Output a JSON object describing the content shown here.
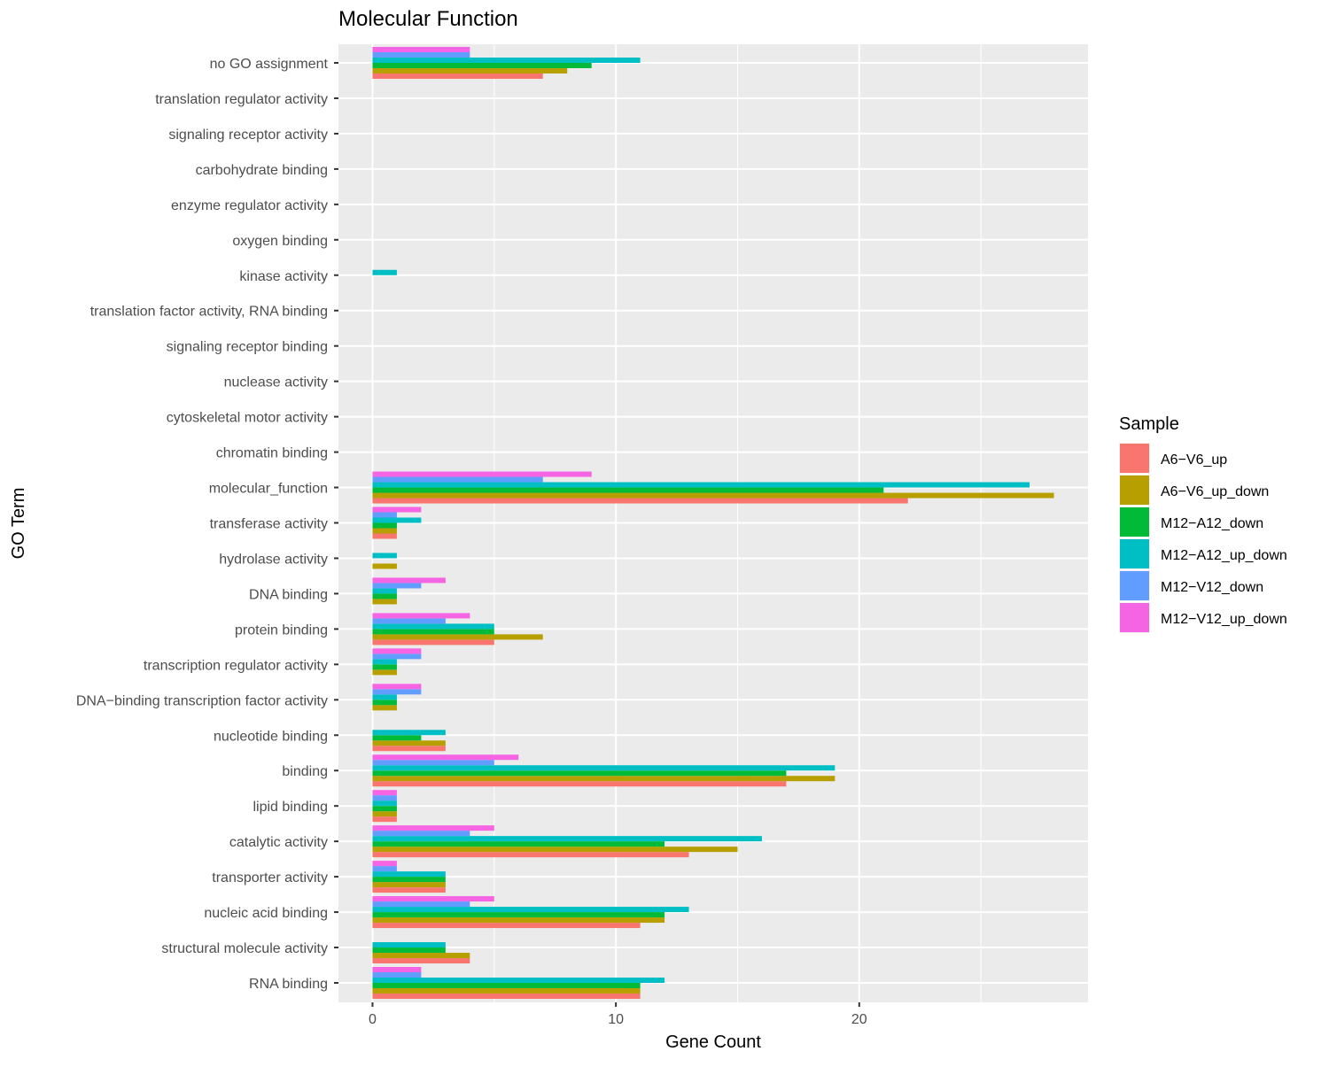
{
  "chart_data": {
    "type": "bar",
    "orientation": "horizontal",
    "title": "Molecular Function",
    "xlabel": "Gene Count",
    "ylabel": "GO Term",
    "xlim": [
      -1.4,
      29.4
    ],
    "xticks": [
      0,
      10,
      20
    ],
    "grid": true,
    "legend": {
      "title": "Sample",
      "placement": "right"
    },
    "categories": [
      "no GO assignment",
      "translation regulator activity",
      "signaling receptor activity",
      "carbohydrate binding",
      "enzyme regulator activity",
      "oxygen binding",
      "kinase activity",
      "translation factor activity, RNA binding",
      "signaling receptor binding",
      "nuclease activity",
      "cytoskeletal motor activity",
      "chromatin binding",
      "molecular_function",
      "transferase activity",
      "hydrolase activity",
      "DNA binding",
      "protein binding",
      "transcription regulator activity",
      "DNA−binding transcription factor activity",
      "nucleotide binding",
      "binding",
      "lipid binding",
      "catalytic activity",
      "transporter activity",
      "nucleic acid binding",
      "structural molecule activity",
      "RNA binding"
    ],
    "series": [
      {
        "name": "A6−V6_up",
        "color": "#F8766D",
        "values": [
          7,
          0,
          0,
          0,
          0,
          0,
          0,
          0,
          0,
          0,
          0,
          0,
          22,
          1,
          0,
          0,
          5,
          0,
          0,
          3,
          17,
          1,
          13,
          3,
          11,
          4,
          11
        ]
      },
      {
        "name": "A6−V6_up_down",
        "color": "#B79F00",
        "values": [
          8,
          0,
          0,
          0,
          0,
          0,
          0,
          0,
          0,
          0,
          0,
          0,
          28,
          1,
          1,
          1,
          7,
          1,
          1,
          3,
          19,
          1,
          15,
          3,
          12,
          4,
          11
        ]
      },
      {
        "name": "M12−A12_down",
        "color": "#00BA38",
        "values": [
          9,
          0,
          0,
          0,
          0,
          0,
          0,
          0,
          0,
          0,
          0,
          0,
          21,
          1,
          0,
          1,
          5,
          1,
          1,
          2,
          17,
          1,
          12,
          3,
          12,
          3,
          11
        ]
      },
      {
        "name": "M12−A12_up_down",
        "color": "#00BFC4",
        "values": [
          11,
          0,
          0,
          0,
          0,
          0,
          1,
          0,
          0,
          0,
          0,
          0,
          27,
          2,
          1,
          1,
          5,
          1,
          1,
          3,
          19,
          1,
          16,
          3,
          13,
          3,
          12
        ]
      },
      {
        "name": "M12−V12_down",
        "color": "#619CFF",
        "values": [
          4,
          0,
          0,
          0,
          0,
          0,
          0,
          0,
          0,
          0,
          0,
          0,
          7,
          1,
          0,
          2,
          3,
          2,
          2,
          0,
          5,
          1,
          4,
          1,
          4,
          0,
          2
        ]
      },
      {
        "name": "M12−V12_up_down",
        "color": "#F564E3",
        "values": [
          4,
          0,
          0,
          0,
          0,
          0,
          0,
          0,
          0,
          0,
          0,
          0,
          9,
          2,
          0,
          3,
          4,
          2,
          2,
          0,
          6,
          1,
          5,
          1,
          5,
          0,
          2
        ]
      }
    ]
  }
}
